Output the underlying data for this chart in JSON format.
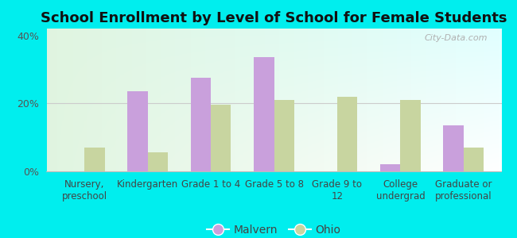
{
  "title": "School Enrollment by Level of School for Female Students",
  "categories": [
    "Nursery,\npreschool",
    "Kindergarten",
    "Grade 1 to 4",
    "Grade 5 to 8",
    "Grade 9 to\n12",
    "College\nundergrad",
    "Graduate or\nprofessional"
  ],
  "malvern": [
    0,
    23.5,
    27.5,
    33.5,
    0,
    2.0,
    13.5
  ],
  "ohio": [
    7.0,
    5.5,
    19.5,
    21.0,
    22.0,
    21.0,
    7.0
  ],
  "malvern_color": "#c9a0dc",
  "ohio_color": "#c8d5a0",
  "background_color": "#00eeee",
  "ylim": [
    0,
    42
  ],
  "yticks": [
    0,
    20,
    40
  ],
  "ytick_labels": [
    "0%",
    "20%",
    "40%"
  ],
  "legend_malvern": "Malvern",
  "legend_ohio": "Ohio",
  "bar_width": 0.32,
  "title_fontsize": 13,
  "tick_fontsize": 8.5,
  "ytick_fontsize": 9
}
